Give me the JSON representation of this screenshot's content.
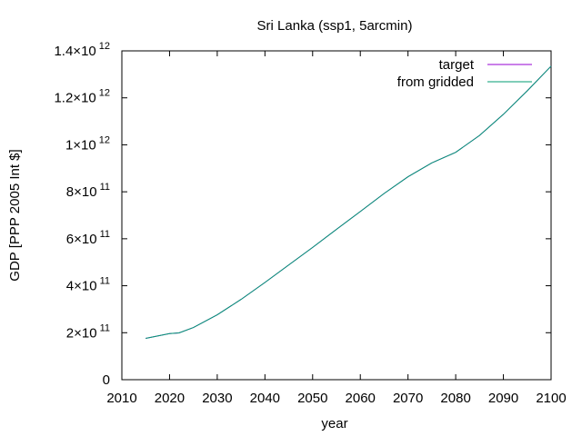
{
  "chart_data": {
    "type": "line",
    "title": "Sri Lanka (ssp1, 5arcmin)",
    "xlabel": "year",
    "ylabel": "GDP [PPP 2005 Int $]",
    "xlim": [
      2010,
      2100
    ],
    "ylim": [
      0,
      1400000000000.0
    ],
    "x_ticks": [
      2010,
      2020,
      2030,
      2040,
      2050,
      2060,
      2070,
      2080,
      2090,
      2100
    ],
    "y_ticks": [
      {
        "value": 0,
        "mantissa": "0",
        "exponent": ""
      },
      {
        "value": 200000000000.0,
        "mantissa": "2×10",
        "exponent": "11"
      },
      {
        "value": 400000000000.0,
        "mantissa": "4×10",
        "exponent": "11"
      },
      {
        "value": 600000000000.0,
        "mantissa": "6×10",
        "exponent": "11"
      },
      {
        "value": 800000000000.0,
        "mantissa": "8×10",
        "exponent": "11"
      },
      {
        "value": 1000000000000.0,
        "mantissa": "1×10",
        "exponent": "12"
      },
      {
        "value": 1200000000000.0,
        "mantissa": "1.2×10",
        "exponent": "12"
      },
      {
        "value": 1400000000000.0,
        "mantissa": "1.4×10",
        "exponent": "12"
      }
    ],
    "legend_position": "top-right",
    "grid": false,
    "x": [
      2015,
      2020,
      2022,
      2025,
      2030,
      2035,
      2040,
      2045,
      2050,
      2055,
      2060,
      2065,
      2070,
      2075,
      2080,
      2085,
      2090,
      2095,
      2100
    ],
    "series": [
      {
        "name": "target",
        "color": "#9400d3",
        "values": [
          176000000000.0,
          196000000000.0,
          199000000000.0,
          222000000000.0,
          276000000000.0,
          342000000000.0,
          414000000000.0,
          489000000000.0,
          563000000000.0,
          640000000000.0,
          716000000000.0,
          793000000000.0,
          864000000000.0,
          923000000000.0,
          968000000000.0,
          1040000000000.0,
          1130000000000.0,
          1230000000000.0,
          1335000000000.0
        ]
      },
      {
        "name": "from gridded",
        "color": "#009e73",
        "values": [
          176000000000.0,
          196000000000.0,
          199000000000.0,
          222000000000.0,
          276000000000.0,
          342000000000.0,
          414000000000.0,
          489000000000.0,
          563000000000.0,
          640000000000.0,
          716000000000.0,
          793000000000.0,
          864000000000.0,
          923000000000.0,
          968000000000.0,
          1040000000000.0,
          1130000000000.0,
          1230000000000.0,
          1335000000000.0
        ]
      }
    ]
  }
}
